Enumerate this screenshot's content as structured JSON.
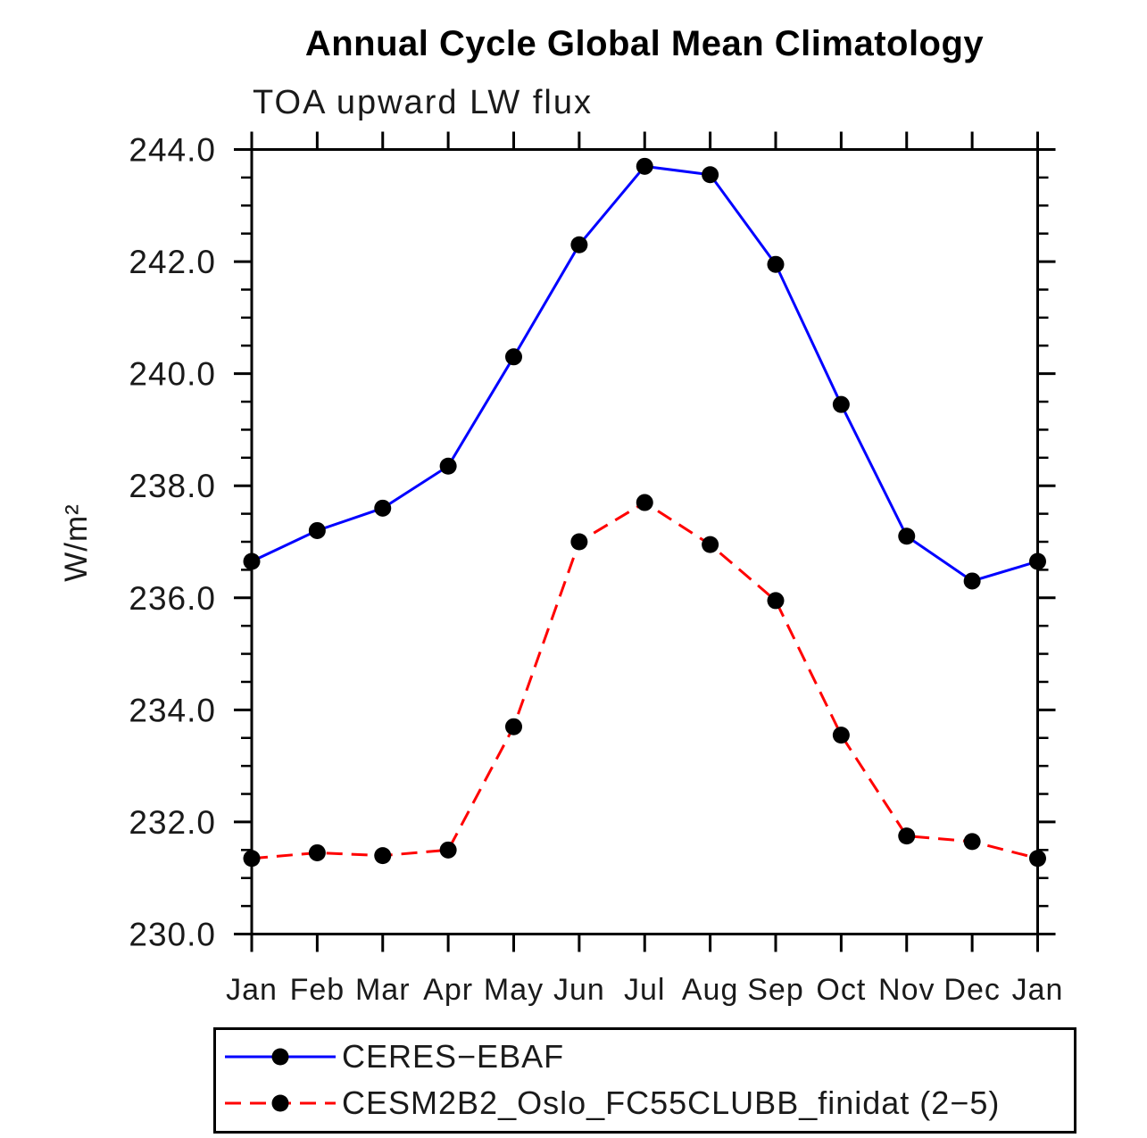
{
  "title": "Annual Cycle Global Mean Climatology",
  "subtitle": "TOA upward LW flux",
  "ylabel": "W/m²",
  "axis_color": "#000000",
  "chart_data": {
    "type": "line",
    "title": "Annual Cycle Global Mean Climatology",
    "subtitle": "TOA upward LW flux",
    "xlabel": "",
    "ylabel": "W/m²",
    "categories": [
      "Jan",
      "Feb",
      "Mar",
      "Apr",
      "May",
      "Jun",
      "Jul",
      "Aug",
      "Sep",
      "Oct",
      "Nov",
      "Dec",
      "Jan"
    ],
    "ylim": [
      230.0,
      244.0
    ],
    "ytick_major_interval": 2.0,
    "ytick_minor_interval": 0.5,
    "ytick_labels": [
      "230.0",
      "232.0",
      "234.0",
      "236.0",
      "238.0",
      "240.0",
      "242.0",
      "244.0"
    ],
    "grid": "off",
    "legend_position": "bottom-box",
    "marker": {
      "shape": "circle",
      "color": "#000000",
      "radius": 9.5
    },
    "series": [
      {
        "name": "CERES−EBAF",
        "color": "#0000ff",
        "line_style": "solid",
        "values": [
          236.65,
          237.2,
          237.6,
          238.35,
          240.3,
          242.3,
          243.7,
          243.55,
          241.95,
          239.45,
          237.1,
          236.3,
          236.65
        ]
      },
      {
        "name": "CESM2B2_Oslo_FC55CLUBB_finidat (2−5)",
        "color": "#ff0000",
        "line_style": "dashed",
        "values": [
          231.35,
          231.45,
          231.4,
          231.5,
          233.7,
          237.0,
          237.7,
          236.95,
          235.95,
          233.55,
          231.75,
          231.65,
          231.35
        ]
      }
    ]
  }
}
